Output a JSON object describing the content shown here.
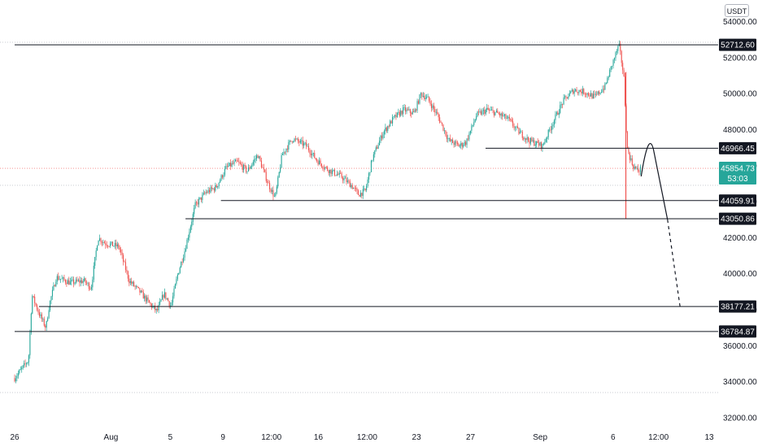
{
  "header": {
    "currency": "USDT"
  },
  "chart_data": {
    "type": "candlestick",
    "ylim": [
      31500,
      55200
    ],
    "y_ticks": [
      32000,
      34000,
      36000,
      38000,
      40000,
      42000,
      44000,
      46000,
      48000,
      50000,
      52000,
      54000
    ],
    "x_ticks": [
      {
        "label": "26",
        "pos": 0.0
      },
      {
        "label": "Aug",
        "pos": 0.1387
      },
      {
        "label": "5",
        "pos": 0.2241
      },
      {
        "label": "9",
        "pos": 0.2999
      },
      {
        "label": "12:00",
        "pos": 0.3697
      },
      {
        "label": "16",
        "pos": 0.4373
      },
      {
        "label": "12:00",
        "pos": 0.5075
      },
      {
        "label": "23",
        "pos": 0.5786
      },
      {
        "label": "27",
        "pos": 0.6564
      },
      {
        "label": "Sep",
        "pos": 0.7566
      },
      {
        "label": "6",
        "pos": 0.8616
      },
      {
        "label": "12:00",
        "pos": 0.927
      },
      {
        "label": "13",
        "pos": 1.0
      }
    ],
    "anchors": [
      [
        0.0,
        34200
      ],
      [
        0.02,
        35200
      ],
      [
        0.025,
        38800
      ],
      [
        0.035,
        37800
      ],
      [
        0.045,
        37000
      ],
      [
        0.05,
        38300
      ],
      [
        0.06,
        39800
      ],
      [
        0.08,
        39500
      ],
      [
        0.1,
        39600
      ],
      [
        0.11,
        39200
      ],
      [
        0.12,
        42000
      ],
      [
        0.13,
        41700
      ],
      [
        0.15,
        41500
      ],
      [
        0.165,
        39600
      ],
      [
        0.18,
        39000
      ],
      [
        0.195,
        38300
      ],
      [
        0.205,
        37900
      ],
      [
        0.215,
        38900
      ],
      [
        0.225,
        38200
      ],
      [
        0.235,
        40000
      ],
      [
        0.245,
        41300
      ],
      [
        0.26,
        43800
      ],
      [
        0.275,
        44500
      ],
      [
        0.29,
        44800
      ],
      [
        0.305,
        45900
      ],
      [
        0.32,
        46200
      ],
      [
        0.335,
        45700
      ],
      [
        0.35,
        46600
      ],
      [
        0.365,
        45000
      ],
      [
        0.375,
        44200
      ],
      [
        0.385,
        46600
      ],
      [
        0.4,
        47500
      ],
      [
        0.42,
        47100
      ],
      [
        0.435,
        46300
      ],
      [
        0.45,
        45800
      ],
      [
        0.47,
        45400
      ],
      [
        0.485,
        44900
      ],
      [
        0.495,
        44400
      ],
      [
        0.505,
        44600
      ],
      [
        0.515,
        46400
      ],
      [
        0.53,
        47800
      ],
      [
        0.545,
        48600
      ],
      [
        0.56,
        49100
      ],
      [
        0.575,
        48900
      ],
      [
        0.585,
        50000
      ],
      [
        0.595,
        49700
      ],
      [
        0.61,
        48700
      ],
      [
        0.625,
        47400
      ],
      [
        0.64,
        47100
      ],
      [
        0.65,
        47300
      ],
      [
        0.665,
        48800
      ],
      [
        0.68,
        49100
      ],
      [
        0.695,
        48900
      ],
      [
        0.71,
        48600
      ],
      [
        0.725,
        47900
      ],
      [
        0.74,
        47400
      ],
      [
        0.76,
        47100
      ],
      [
        0.775,
        48400
      ],
      [
        0.79,
        49600
      ],
      [
        0.805,
        50200
      ],
      [
        0.82,
        50100
      ],
      [
        0.835,
        49800
      ],
      [
        0.85,
        50400
      ],
      [
        0.86,
        51600
      ],
      [
        0.87,
        52700
      ],
      [
        0.877,
        51000
      ],
      [
        0.882,
        46900
      ],
      [
        0.89,
        46000
      ],
      [
        0.897,
        45700
      ],
      [
        0.902,
        45850
      ]
    ],
    "spike_low": 43050,
    "levels": [
      {
        "value": "52712.60",
        "y": 52712.6
      },
      {
        "value": "46966.45",
        "y": 46966.45
      },
      {
        "value": "44059.91",
        "y": 44059.91
      },
      {
        "value": "43050.86",
        "y": 43050.86
      },
      {
        "value": "38177.21",
        "y": 38177.21
      },
      {
        "value": "36784.87",
        "y": 36784.87
      }
    ],
    "current": {
      "price": "45854.73",
      "countdown": "53:03",
      "y": 45854.73
    },
    "colors": {
      "up": "#26a69a",
      "down": "#ef5350",
      "grid": "#e0e3eb",
      "line": "#131722",
      "current": "#26a69a"
    }
  }
}
